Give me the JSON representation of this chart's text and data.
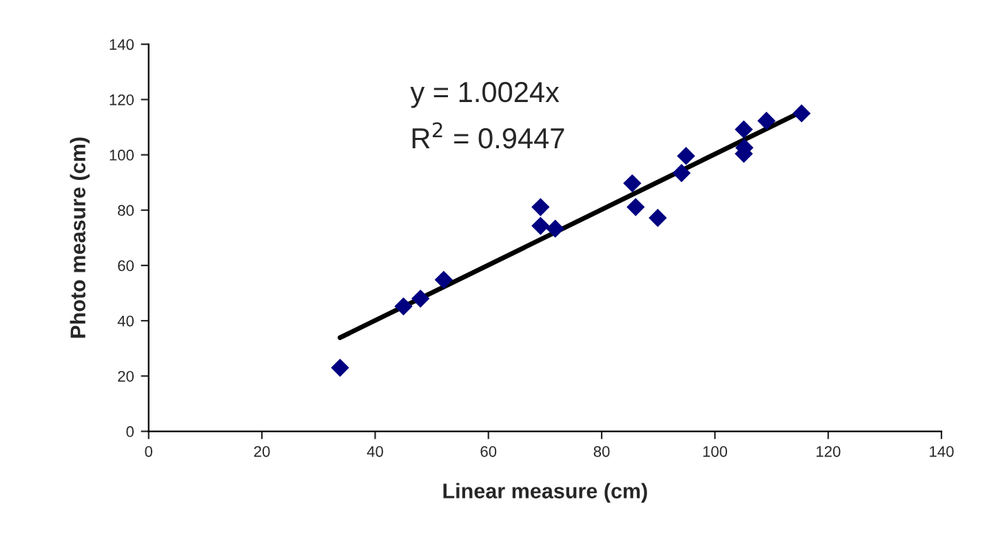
{
  "chart_data": {
    "type": "scatter",
    "xlabel": "Linear measure (cm)",
    "ylabel": "Photo measure (cm)",
    "xlim": [
      0,
      140
    ],
    "xticks": [
      0,
      20,
      40,
      60,
      80,
      100,
      120,
      140
    ],
    "ylim": [
      0,
      140
    ],
    "yticks": [
      0,
      20,
      40,
      60,
      80,
      100,
      120,
      140
    ],
    "grid": false,
    "legend": false,
    "marker": "diamond",
    "series": [
      {
        "color": "#000080",
        "x": [
          33.8,
          45.0,
          48.0,
          52.1,
          69.2,
          69.2,
          71.8,
          85.4,
          86.0,
          89.9,
          94.1,
          94.9,
          105.1,
          105.2,
          105.1,
          109.1,
          115.3
        ],
        "values": [
          23.0,
          45.2,
          48.0,
          54.8,
          81.1,
          74.3,
          73.3,
          89.7,
          81.1,
          77.2,
          93.4,
          99.6,
          109.2,
          102.6,
          100.4,
          112.3,
          115.0
        ]
      },
      {
        "type": "line",
        "color": "#000000",
        "line_style": "solid",
        "marker": "none",
        "x": [
          33.8,
          115.3
        ],
        "values": [
          33.9,
          115.6
        ]
      }
    ],
    "annotations": [
      "y = 1.0024x",
      "R$^{2}$ = 0.9447"
    ]
  }
}
